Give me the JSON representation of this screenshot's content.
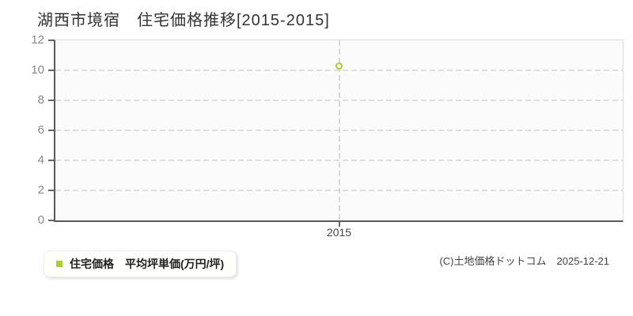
{
  "title": "湖西市境宿　住宅価格推移[2015-2015]",
  "legend": {
    "label": "住宅価格　平均坪単価(万円/坪)",
    "marker_color": "#a9ce2d"
  },
  "footer": {
    "copyright": "(C)土地価格ドットコム　2025-12-21"
  },
  "colors": {
    "accent": "#a9ce2d",
    "axis": "#5a5a5a",
    "grid": "#dedede",
    "plot_bg": "#fbfbfb",
    "y_label": "#888888",
    "x_label": "#444444"
  },
  "chart_data": {
    "type": "scatter",
    "title": "湖西市境宿 住宅価格推移[2015-2015]",
    "categories": [
      "2015"
    ],
    "series": [
      {
        "name": "住宅価格 平均坪単価(万円/坪)",
        "values": [
          10.3
        ]
      }
    ],
    "xlabel": "",
    "ylabel": "",
    "ylim": [
      0,
      12
    ],
    "yticks": [
      0,
      2,
      4,
      6,
      8,
      10,
      12
    ],
    "grid": true,
    "legend_position": "bottom-left",
    "marker": "open-circle",
    "marker_color": "#a9ce2d"
  }
}
